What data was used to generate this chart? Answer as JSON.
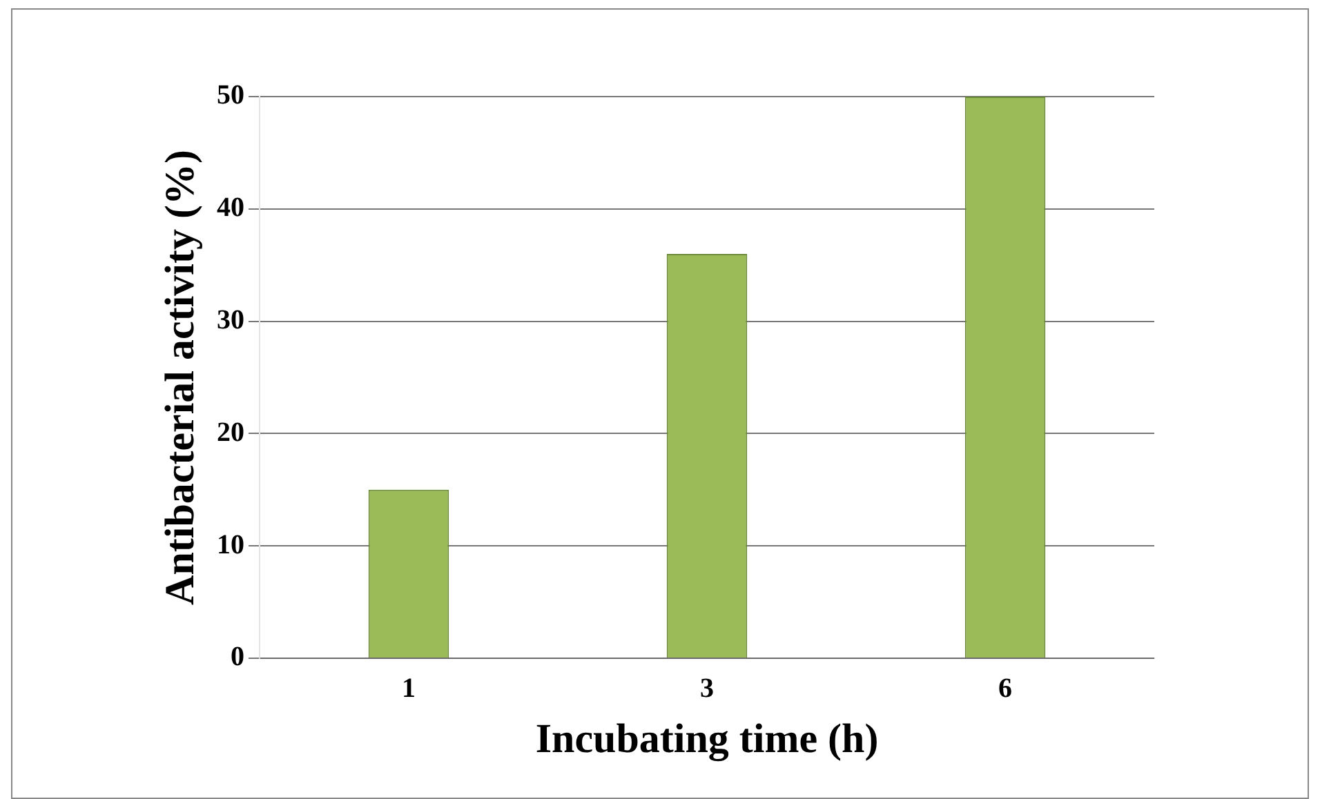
{
  "chart_data": {
    "type": "bar",
    "xlabel": "Incubating time (h)",
    "ylabel": "Antibacterial activity (%)",
    "categories": [
      "1",
      "3",
      "6"
    ],
    "values": [
      15,
      36,
      50
    ],
    "color": "#9bbb59",
    "ylim": [
      0,
      50
    ],
    "yticks": [
      0,
      10,
      20,
      30,
      40,
      50
    ],
    "grid": "y"
  }
}
